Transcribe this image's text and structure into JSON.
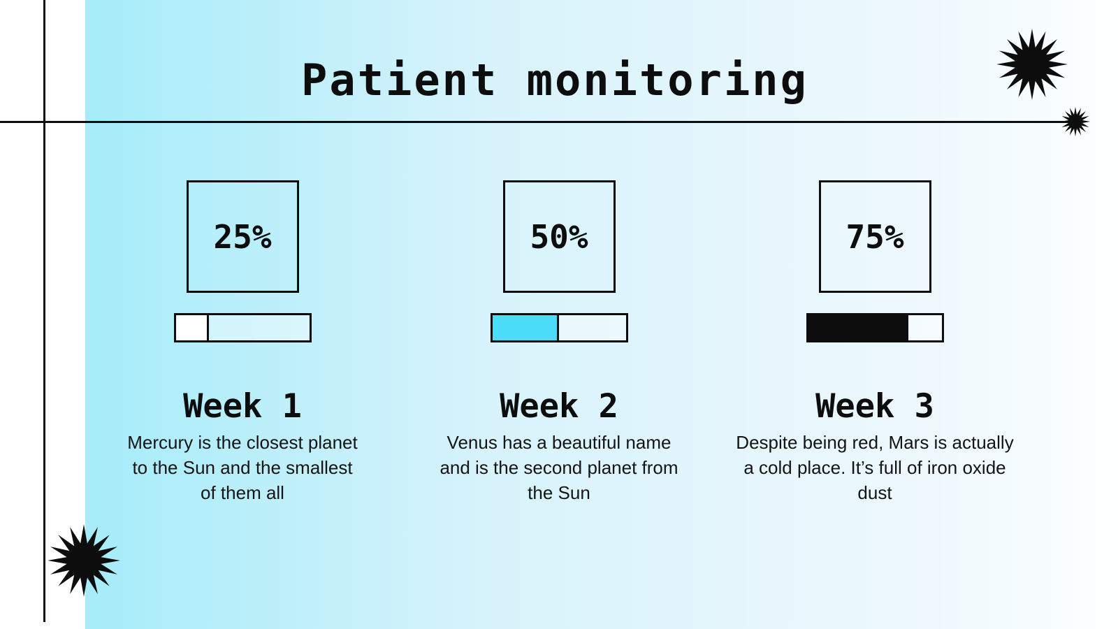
{
  "slide": {
    "title": "Patient monitoring",
    "colors": {
      "gradient_from": "#A6ECFA",
      "gradient_to": "#FDFFFF",
      "line_color": "#0D0D0D",
      "starburst_color": "#0D0D0D",
      "accent_cyan": "#4ADCF8",
      "text_color": "#141414"
    },
    "decorations": {
      "starburst_points": 16,
      "starbursts": [
        "top-right-large",
        "horizontal-line-end-small",
        "bottom-left-large"
      ]
    },
    "columns": [
      {
        "percent": "25%",
        "progress": 25,
        "fill_color": "#FFFFFF",
        "week": "Week 1",
        "description": "Mercury is the closest planet to the Sun and the smallest of them all"
      },
      {
        "percent": "50%",
        "progress": 50,
        "fill_color": "#4ADCF8",
        "week": "Week 2",
        "description": "Venus has a beautiful name and is the second planet from the Sun"
      },
      {
        "percent": "75%",
        "progress": 75,
        "fill_color": "#0D0D0D",
        "week": "Week 3",
        "description": "Despite being red, Mars is actually a cold place. It’s full of iron oxide dust"
      }
    ]
  }
}
